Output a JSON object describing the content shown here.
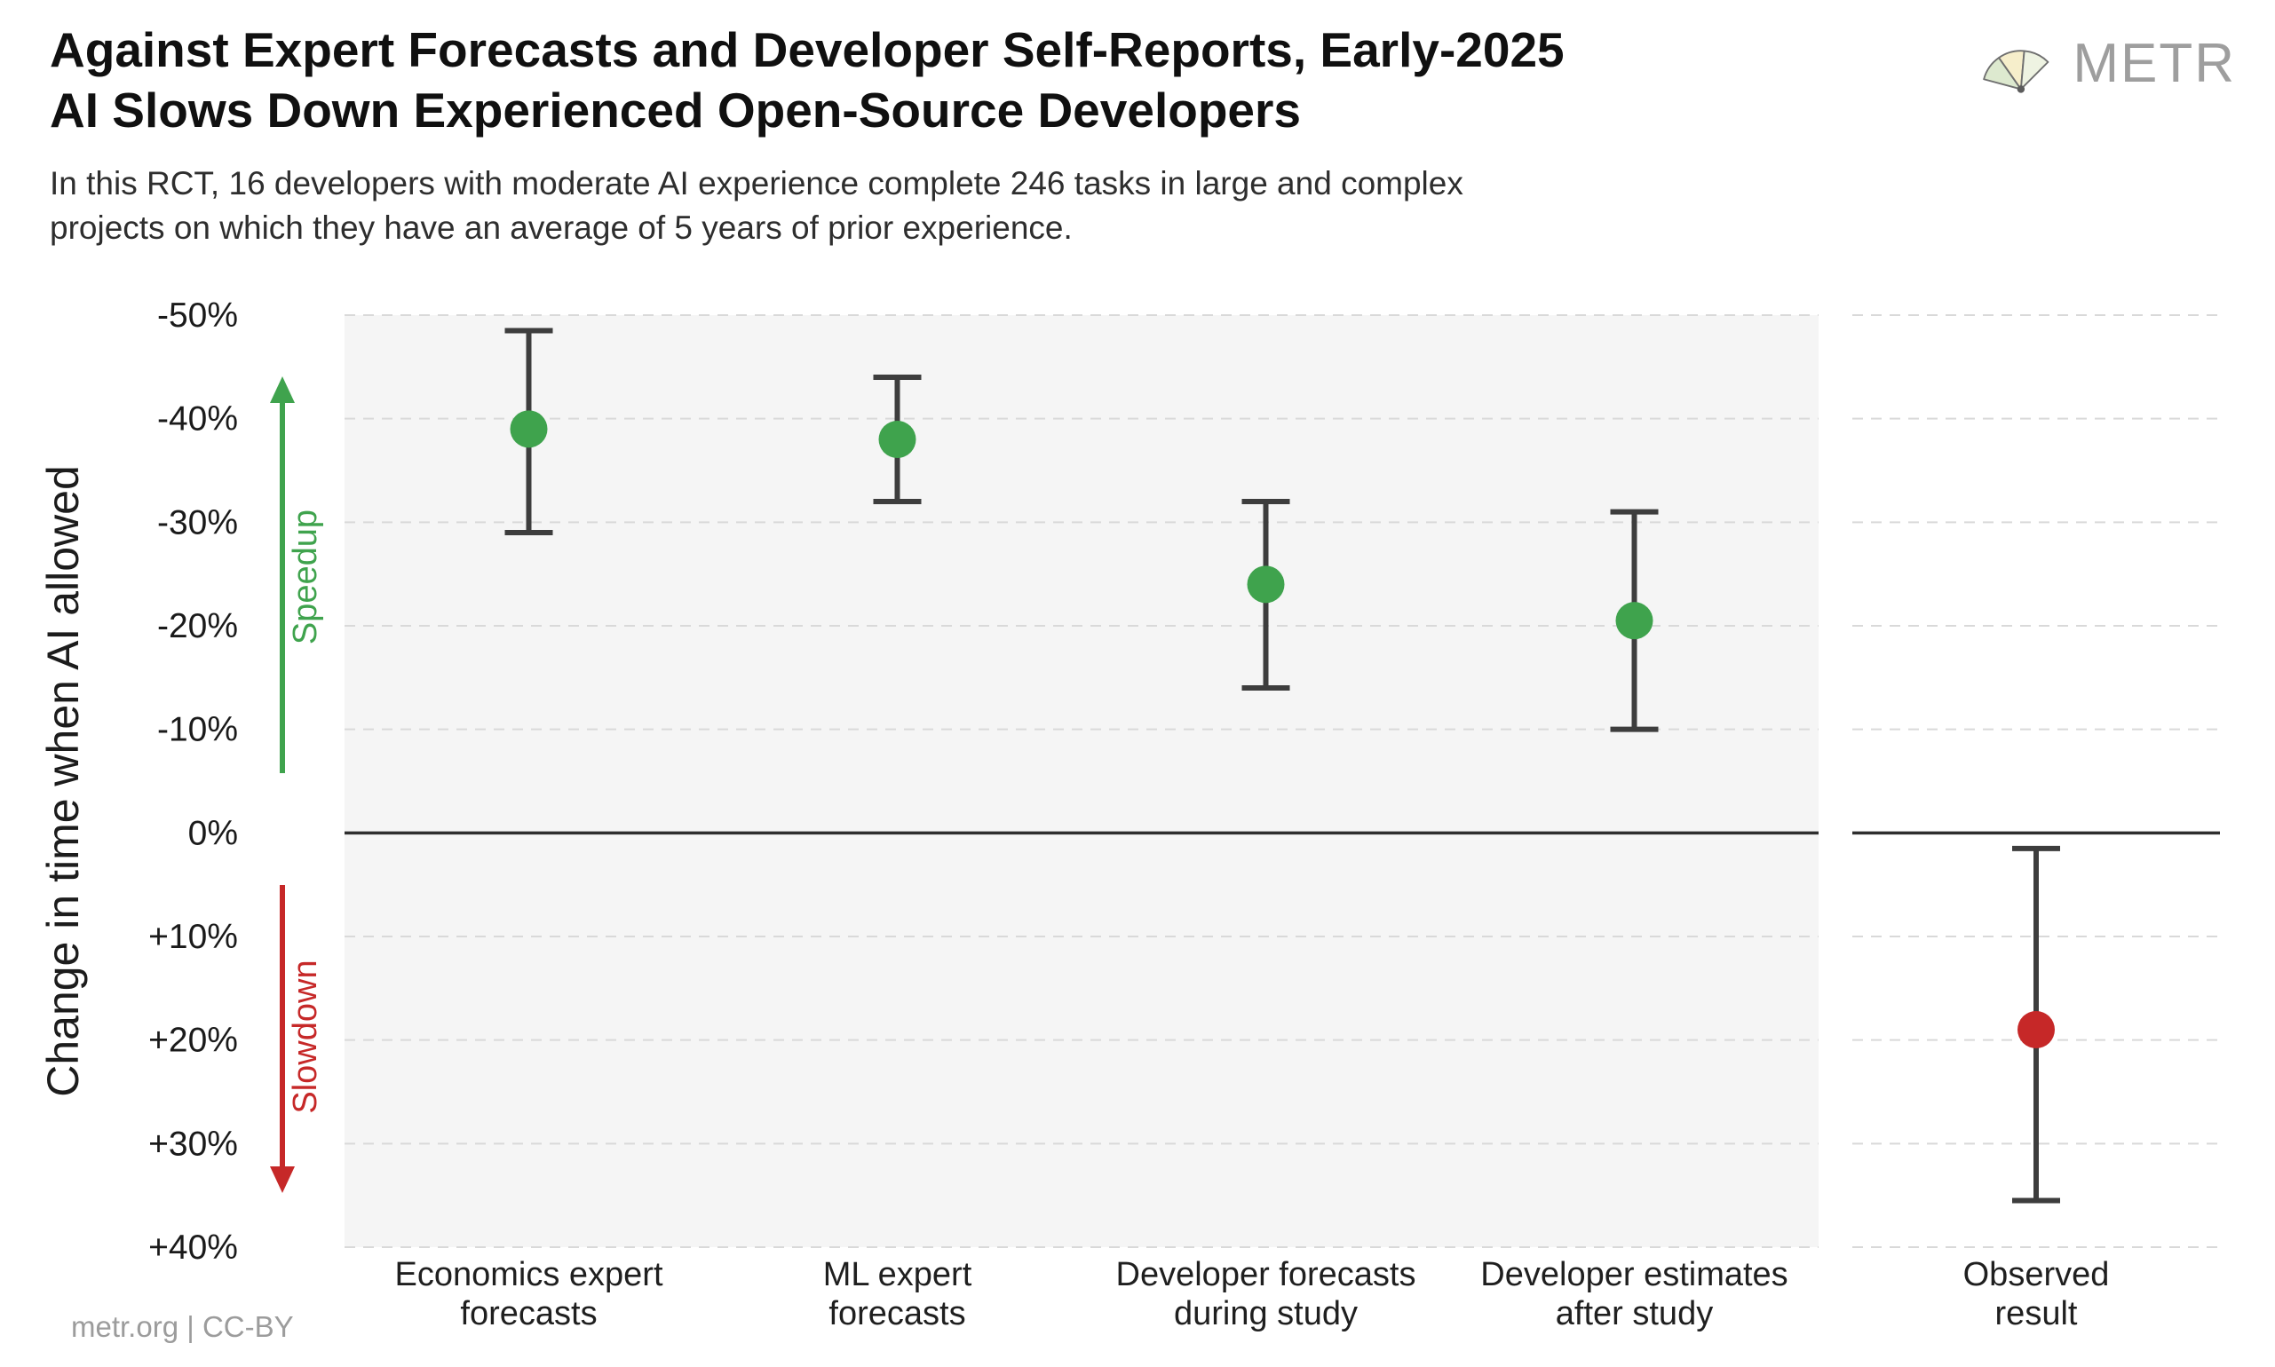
{
  "header": {
    "brand": "METR",
    "brand_color": "#9e9e9e"
  },
  "footer": {
    "credit": "metr.org  |  CC-BY"
  },
  "chart_data": {
    "type": "scatter",
    "title": "Against Expert Forecasts and Developer Self-Reports, Early-2025 AI Slows Down Experienced Open-Source Developers",
    "title_lines": [
      "Against Expert Forecasts and Developer Self-Reports, Early-2025",
      "AI Slows Down Experienced Open-Source Developers"
    ],
    "subtitle_lines": [
      "In this RCT, 16 developers with moderate AI experience complete 246 tasks in large and complex",
      "projects on which they have an average of 5 years of prior experience."
    ],
    "ylabel": "Change in time when AI allowed",
    "y_axis": {
      "min": -50,
      "max": 40,
      "unit": "%",
      "orientation": "negative values (speedup) plotted upward",
      "ticks": [
        -50,
        -40,
        -30,
        -20,
        -10,
        0,
        10,
        20,
        30,
        40
      ],
      "tick_labels": [
        "-50%",
        "-40%",
        "-30%",
        "-20%",
        "-10%",
        "0%",
        "+10%",
        "+20%",
        "+30%",
        "+40%"
      ],
      "grid": "dashed horizontal"
    },
    "zero_line": 0,
    "annotations": [
      {
        "text": "Speedup",
        "direction": "up",
        "color": "#3fa34d"
      },
      {
        "text": "Slowdown",
        "direction": "down",
        "color": "#c62828"
      }
    ],
    "points": [
      {
        "label_lines": [
          "Economics expert",
          "forecasts"
        ],
        "panel": "main",
        "value": -39,
        "ci": [
          -48.5,
          -29
        ],
        "color": "#3fa34d"
      },
      {
        "label_lines": [
          "ML expert",
          "forecasts"
        ],
        "panel": "main",
        "value": -38,
        "ci": [
          -44,
          -32
        ],
        "color": "#3fa34d"
      },
      {
        "label_lines": [
          "Developer forecasts",
          "during study"
        ],
        "panel": "main",
        "value": -24,
        "ci": [
          -32,
          -14
        ],
        "color": "#3fa34d"
      },
      {
        "label_lines": [
          "Developer estimates",
          "after study"
        ],
        "panel": "main",
        "value": -20.5,
        "ci": [
          -31,
          -10
        ],
        "color": "#3fa34d"
      },
      {
        "label_lines": [
          "Observed",
          "result"
        ],
        "panel": "observed",
        "value": 19,
        "ci": [
          1.5,
          35.5
        ],
        "color": "#c62828"
      }
    ],
    "colors": {
      "error_bar": "#3d3d3d",
      "grid": "#d9d9d9",
      "zero_line": "#2e2e2e",
      "panel_bg": "#f5f5f5",
      "tick_text": "#1a1a1a",
      "category_text": "#1f1f1f"
    },
    "legend": "none"
  }
}
